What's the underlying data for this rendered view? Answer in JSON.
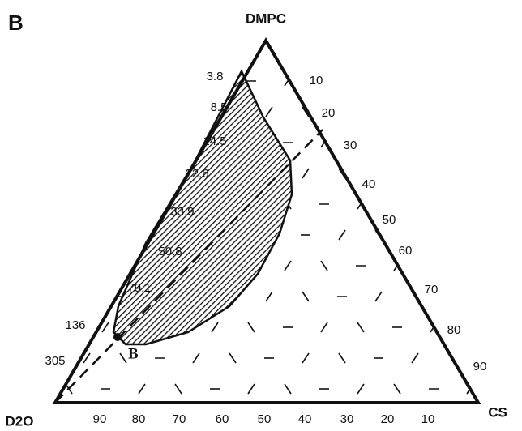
{
  "panel_label": "B",
  "vertices": {
    "top": "DMPC",
    "left": "D2O",
    "right": "CS"
  },
  "left_edge_labels": [
    "3.8",
    "8.5",
    "14.5",
    "22.6",
    "33.9",
    "50.8",
    "79.1",
    "136",
    "305"
  ],
  "right_edge_labels": [
    "10",
    "20",
    "30",
    "40",
    "50",
    "60",
    "70",
    "80",
    "90"
  ],
  "bottom_edge_labels": [
    "90",
    "80",
    "70",
    "60",
    "50",
    "40",
    "30",
    "20",
    "10"
  ],
  "point_label": "B"
}
